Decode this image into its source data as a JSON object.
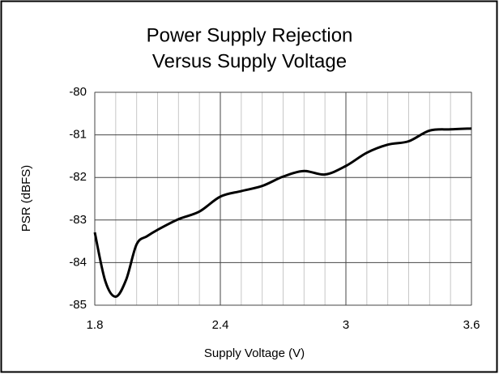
{
  "chart_data": {
    "type": "line",
    "title": [
      "Power Supply Rejection",
      "Versus Supply Voltage"
    ],
    "x_label": "Supply Voltage (V)",
    "y_label": "PSR (dBFS)",
    "x": [
      1.8,
      1.85,
      1.9,
      1.95,
      2.0,
      2.05,
      2.1,
      2.2,
      2.3,
      2.4,
      2.5,
      2.6,
      2.7,
      2.8,
      2.9,
      3.0,
      3.1,
      3.2,
      3.3,
      3.4,
      3.5,
      3.6
    ],
    "series": [
      {
        "name": "PSR",
        "color": "#000000",
        "values": [
          -83.29,
          -84.43,
          -84.8,
          -84.4,
          -83.57,
          -83.38,
          -83.23,
          -82.98,
          -82.8,
          -82.45,
          -82.32,
          -82.2,
          -81.98,
          -81.85,
          -81.93,
          -81.73,
          -81.42,
          -81.23,
          -81.15,
          -80.9,
          -80.87,
          -80.85
        ]
      }
    ],
    "xlim": [
      1.8,
      3.6
    ],
    "xticks": [
      1.8,
      2.4,
      3,
      3.6
    ],
    "x_minor_grid": [
      1.9,
      2.0,
      2.1,
      2.2,
      2.3,
      2.5,
      2.6,
      2.7,
      2.8,
      2.9,
      3.1,
      3.2,
      3.3,
      3.4,
      3.5
    ],
    "ylim": [
      -85,
      -80
    ],
    "yticks": [
      -85,
      -84,
      -83,
      -82,
      -81,
      -80
    ],
    "grid": true
  }
}
